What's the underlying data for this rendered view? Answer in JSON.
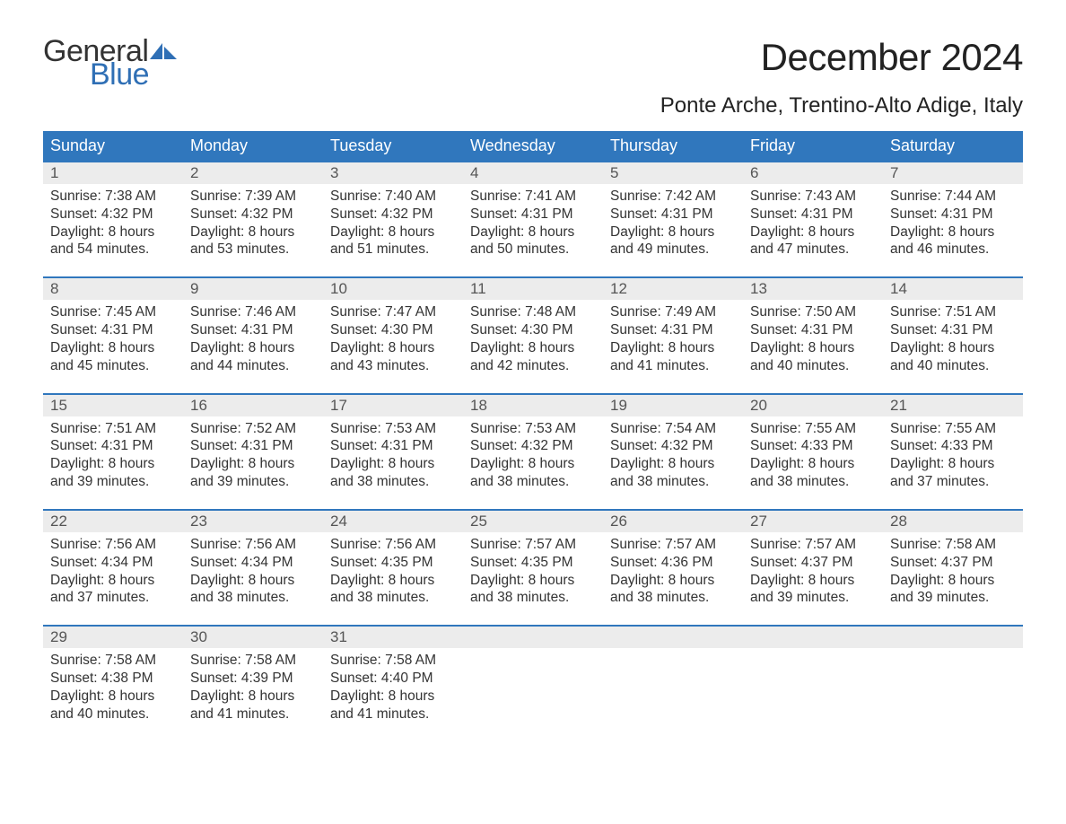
{
  "brand": {
    "word1": "General",
    "word2": "Blue",
    "color_text": "#333333",
    "color_blue": "#2f6fb5"
  },
  "title": "December 2024",
  "subtitle": "Ponte Arche, Trentino-Alto Adige, Italy",
  "colors": {
    "header_bg": "#3077bd",
    "header_text": "#ffffff",
    "daynum_bg": "#ececec",
    "body_text": "#333333",
    "week_border": "#3077bd"
  },
  "daysOfWeek": [
    "Sunday",
    "Monday",
    "Tuesday",
    "Wednesday",
    "Thursday",
    "Friday",
    "Saturday"
  ],
  "weeks": [
    [
      {
        "n": "1",
        "sunrise": "Sunrise: 7:38 AM",
        "sunset": "Sunset: 4:32 PM",
        "d1": "Daylight: 8 hours",
        "d2": "and 54 minutes."
      },
      {
        "n": "2",
        "sunrise": "Sunrise: 7:39 AM",
        "sunset": "Sunset: 4:32 PM",
        "d1": "Daylight: 8 hours",
        "d2": "and 53 minutes."
      },
      {
        "n": "3",
        "sunrise": "Sunrise: 7:40 AM",
        "sunset": "Sunset: 4:32 PM",
        "d1": "Daylight: 8 hours",
        "d2": "and 51 minutes."
      },
      {
        "n": "4",
        "sunrise": "Sunrise: 7:41 AM",
        "sunset": "Sunset: 4:31 PM",
        "d1": "Daylight: 8 hours",
        "d2": "and 50 minutes."
      },
      {
        "n": "5",
        "sunrise": "Sunrise: 7:42 AM",
        "sunset": "Sunset: 4:31 PM",
        "d1": "Daylight: 8 hours",
        "d2": "and 49 minutes."
      },
      {
        "n": "6",
        "sunrise": "Sunrise: 7:43 AM",
        "sunset": "Sunset: 4:31 PM",
        "d1": "Daylight: 8 hours",
        "d2": "and 47 minutes."
      },
      {
        "n": "7",
        "sunrise": "Sunrise: 7:44 AM",
        "sunset": "Sunset: 4:31 PM",
        "d1": "Daylight: 8 hours",
        "d2": "and 46 minutes."
      }
    ],
    [
      {
        "n": "8",
        "sunrise": "Sunrise: 7:45 AM",
        "sunset": "Sunset: 4:31 PM",
        "d1": "Daylight: 8 hours",
        "d2": "and 45 minutes."
      },
      {
        "n": "9",
        "sunrise": "Sunrise: 7:46 AM",
        "sunset": "Sunset: 4:31 PM",
        "d1": "Daylight: 8 hours",
        "d2": "and 44 minutes."
      },
      {
        "n": "10",
        "sunrise": "Sunrise: 7:47 AM",
        "sunset": "Sunset: 4:30 PM",
        "d1": "Daylight: 8 hours",
        "d2": "and 43 minutes."
      },
      {
        "n": "11",
        "sunrise": "Sunrise: 7:48 AM",
        "sunset": "Sunset: 4:30 PM",
        "d1": "Daylight: 8 hours",
        "d2": "and 42 minutes."
      },
      {
        "n": "12",
        "sunrise": "Sunrise: 7:49 AM",
        "sunset": "Sunset: 4:31 PM",
        "d1": "Daylight: 8 hours",
        "d2": "and 41 minutes."
      },
      {
        "n": "13",
        "sunrise": "Sunrise: 7:50 AM",
        "sunset": "Sunset: 4:31 PM",
        "d1": "Daylight: 8 hours",
        "d2": "and 40 minutes."
      },
      {
        "n": "14",
        "sunrise": "Sunrise: 7:51 AM",
        "sunset": "Sunset: 4:31 PM",
        "d1": "Daylight: 8 hours",
        "d2": "and 40 minutes."
      }
    ],
    [
      {
        "n": "15",
        "sunrise": "Sunrise: 7:51 AM",
        "sunset": "Sunset: 4:31 PM",
        "d1": "Daylight: 8 hours",
        "d2": "and 39 minutes."
      },
      {
        "n": "16",
        "sunrise": "Sunrise: 7:52 AM",
        "sunset": "Sunset: 4:31 PM",
        "d1": "Daylight: 8 hours",
        "d2": "and 39 minutes."
      },
      {
        "n": "17",
        "sunrise": "Sunrise: 7:53 AM",
        "sunset": "Sunset: 4:31 PM",
        "d1": "Daylight: 8 hours",
        "d2": "and 38 minutes."
      },
      {
        "n": "18",
        "sunrise": "Sunrise: 7:53 AM",
        "sunset": "Sunset: 4:32 PM",
        "d1": "Daylight: 8 hours",
        "d2": "and 38 minutes."
      },
      {
        "n": "19",
        "sunrise": "Sunrise: 7:54 AM",
        "sunset": "Sunset: 4:32 PM",
        "d1": "Daylight: 8 hours",
        "d2": "and 38 minutes."
      },
      {
        "n": "20",
        "sunrise": "Sunrise: 7:55 AM",
        "sunset": "Sunset: 4:33 PM",
        "d1": "Daylight: 8 hours",
        "d2": "and 38 minutes."
      },
      {
        "n": "21",
        "sunrise": "Sunrise: 7:55 AM",
        "sunset": "Sunset: 4:33 PM",
        "d1": "Daylight: 8 hours",
        "d2": "and 37 minutes."
      }
    ],
    [
      {
        "n": "22",
        "sunrise": "Sunrise: 7:56 AM",
        "sunset": "Sunset: 4:34 PM",
        "d1": "Daylight: 8 hours",
        "d2": "and 37 minutes."
      },
      {
        "n": "23",
        "sunrise": "Sunrise: 7:56 AM",
        "sunset": "Sunset: 4:34 PM",
        "d1": "Daylight: 8 hours",
        "d2": "and 38 minutes."
      },
      {
        "n": "24",
        "sunrise": "Sunrise: 7:56 AM",
        "sunset": "Sunset: 4:35 PM",
        "d1": "Daylight: 8 hours",
        "d2": "and 38 minutes."
      },
      {
        "n": "25",
        "sunrise": "Sunrise: 7:57 AM",
        "sunset": "Sunset: 4:35 PM",
        "d1": "Daylight: 8 hours",
        "d2": "and 38 minutes."
      },
      {
        "n": "26",
        "sunrise": "Sunrise: 7:57 AM",
        "sunset": "Sunset: 4:36 PM",
        "d1": "Daylight: 8 hours",
        "d2": "and 38 minutes."
      },
      {
        "n": "27",
        "sunrise": "Sunrise: 7:57 AM",
        "sunset": "Sunset: 4:37 PM",
        "d1": "Daylight: 8 hours",
        "d2": "and 39 minutes."
      },
      {
        "n": "28",
        "sunrise": "Sunrise: 7:58 AM",
        "sunset": "Sunset: 4:37 PM",
        "d1": "Daylight: 8 hours",
        "d2": "and 39 minutes."
      }
    ],
    [
      {
        "n": "29",
        "sunrise": "Sunrise: 7:58 AM",
        "sunset": "Sunset: 4:38 PM",
        "d1": "Daylight: 8 hours",
        "d2": "and 40 minutes."
      },
      {
        "n": "30",
        "sunrise": "Sunrise: 7:58 AM",
        "sunset": "Sunset: 4:39 PM",
        "d1": "Daylight: 8 hours",
        "d2": "and 41 minutes."
      },
      {
        "n": "31",
        "sunrise": "Sunrise: 7:58 AM",
        "sunset": "Sunset: 4:40 PM",
        "d1": "Daylight: 8 hours",
        "d2": "and 41 minutes."
      },
      {
        "empty": true
      },
      {
        "empty": true
      },
      {
        "empty": true
      },
      {
        "empty": true
      }
    ]
  ]
}
